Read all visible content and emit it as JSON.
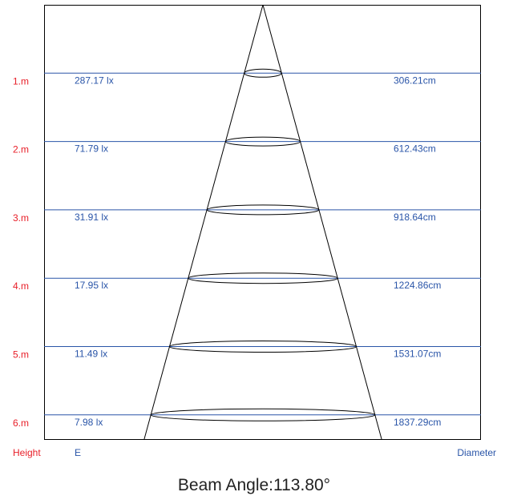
{
  "chart_data": {
    "type": "beam-cone-diagram",
    "levels": [
      {
        "height": "1.m",
        "illuminance": "287.17 lx",
        "diameter": "306.21cm"
      },
      {
        "height": "2.m",
        "illuminance": "71.79 lx",
        "diameter": "612.43cm"
      },
      {
        "height": "3.m",
        "illuminance": "31.91 lx",
        "diameter": "918.64cm"
      },
      {
        "height": "4.m",
        "illuminance": "17.95 lx",
        "diameter": "1224.86cm"
      },
      {
        "height": "5.m",
        "illuminance": "11.49 lx",
        "diameter": "1531.07cm"
      },
      {
        "height": "6.m",
        "illuminance": "7.98 lx",
        "diameter": "1837.29cm"
      }
    ],
    "footer": {
      "height_label": "Height",
      "e_label": "E",
      "diameter_label": "Diameter"
    },
    "caption": "Beam Angle:113.80°"
  }
}
